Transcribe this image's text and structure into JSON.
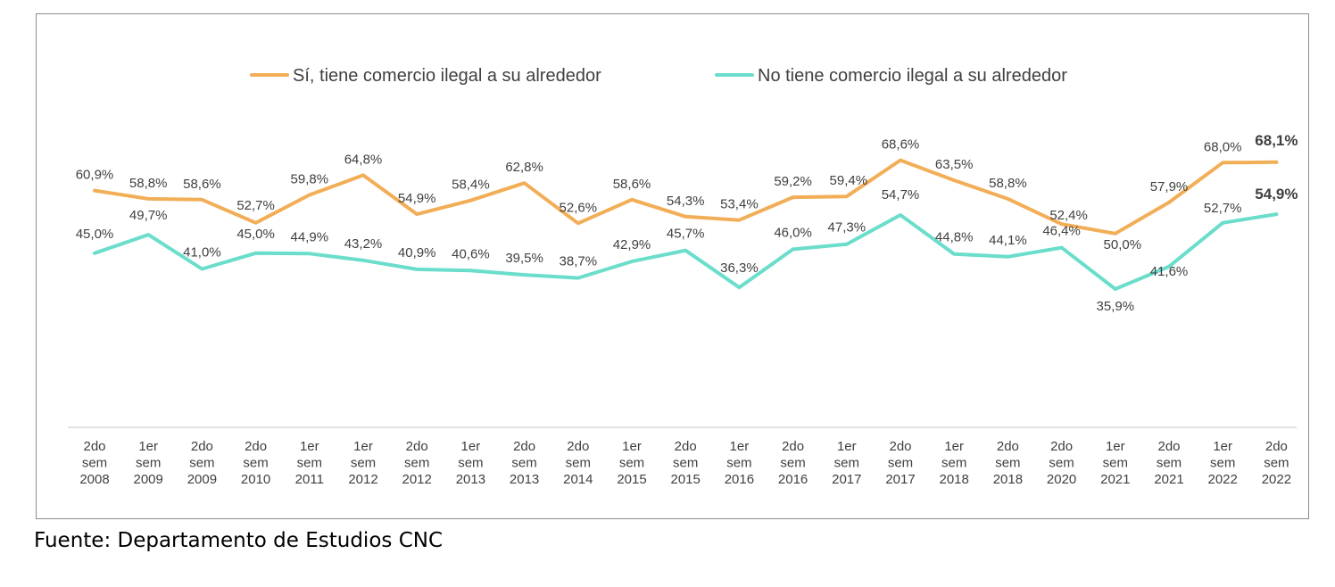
{
  "chart_data": {
    "type": "line",
    "categories": [
      [
        "2do",
        "sem",
        "2008"
      ],
      [
        "1er",
        "sem",
        "2009"
      ],
      [
        "2do",
        "sem",
        "2009"
      ],
      [
        "2do",
        "sem",
        "2010"
      ],
      [
        "1er",
        "sem",
        "2011"
      ],
      [
        "1er",
        "sem",
        "2012"
      ],
      [
        "2do",
        "sem",
        "2012"
      ],
      [
        "1er",
        "sem",
        "2013"
      ],
      [
        "2do",
        "sem",
        "2013"
      ],
      [
        "2do",
        "sem",
        "2014"
      ],
      [
        "1er",
        "sem",
        "2015"
      ],
      [
        "2do",
        "sem",
        "2015"
      ],
      [
        "1er",
        "sem",
        "2016"
      ],
      [
        "2do",
        "sem",
        "2016"
      ],
      [
        "1er",
        "sem",
        "2017"
      ],
      [
        "2do",
        "sem",
        "2017"
      ],
      [
        "1er",
        "sem",
        "2018"
      ],
      [
        "2do",
        "sem",
        "2018"
      ],
      [
        "2do",
        "sem",
        "2020"
      ],
      [
        "1er",
        "sem",
        "2021"
      ],
      [
        "2do",
        "sem",
        "2021"
      ],
      [
        "1er",
        "sem",
        "2022"
      ],
      [
        "2do",
        "sem",
        "2022"
      ]
    ],
    "series": [
      {
        "name": "Sí, tiene comercio ilegal a su alrededor",
        "color": "#F2AE57",
        "values": [
          60.9,
          58.8,
          58.6,
          52.7,
          59.8,
          64.8,
          54.9,
          58.4,
          62.8,
          52.6,
          58.6,
          54.3,
          53.4,
          59.2,
          59.4,
          68.6,
          63.5,
          58.8,
          52.4,
          50.0,
          57.9,
          68.0,
          68.1
        ],
        "labels": [
          "60,9%",
          "58,8%",
          "58,6%",
          "52,7%",
          "59,8%",
          "64,8%",
          "54,9%",
          "58,4%",
          "62,8%",
          "52,6%",
          "58,6%",
          "54,3%",
          "53,4%",
          "59,2%",
          "59,4%",
          "68,6%",
          "63,5%",
          "58,8%",
          "52,4%",
          "50,0%",
          "57,9%",
          "68,0%",
          "68,1%"
        ]
      },
      {
        "name": "No tiene comercio ilegal a su alrededor",
        "color": "#6ADDCB",
        "values": [
          45.0,
          49.7,
          41.0,
          45.0,
          44.9,
          43.2,
          40.9,
          40.6,
          39.5,
          38.7,
          42.9,
          45.7,
          36.3,
          46.0,
          47.3,
          54.7,
          44.8,
          44.1,
          46.4,
          35.9,
          41.6,
          52.7,
          54.9
        ],
        "labels": [
          "45,0%",
          "49,7%",
          "41,0%",
          "45,0%",
          "44,9%",
          "43,2%",
          "40,9%",
          "40,6%",
          "39,5%",
          "38,7%",
          "42,9%",
          "45,7%",
          "36,3%",
          "46,0%",
          "47,3%",
          "54,7%",
          "44,8%",
          "44,1%",
          "46,4%",
          "35,9%",
          "41,6%",
          "52,7%",
          "54,9%"
        ]
      }
    ],
    "legend_position": "top",
    "grid": false,
    "axis_color": "#d9d9d9"
  },
  "source": "Fuente: Departamento de Estudios CNC"
}
